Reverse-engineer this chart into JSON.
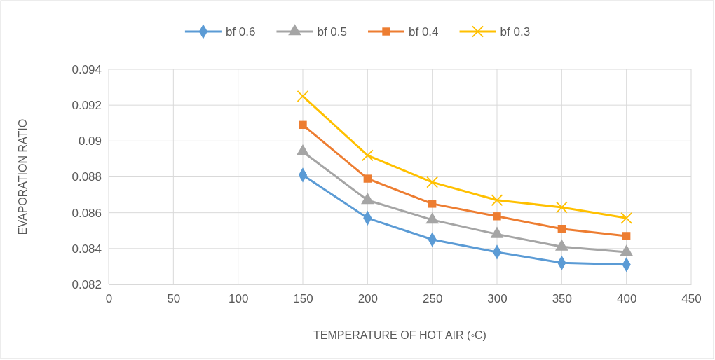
{
  "chart_data": {
    "type": "line",
    "xlabel": "TEMPERATURE OF HOT AIR (◦C)",
    "ylabel": "EVAPORATION RATIO",
    "x": [
      150,
      200,
      250,
      300,
      350,
      400
    ],
    "xlim": [
      0,
      450
    ],
    "xticks": [
      0,
      50,
      100,
      150,
      200,
      250,
      300,
      350,
      400,
      450
    ],
    "ylim": [
      0.082,
      0.094
    ],
    "yticks": [
      0.082,
      0.084,
      0.086,
      0.088,
      0.09,
      0.092,
      0.094
    ],
    "grid": true,
    "legend": "top",
    "series": [
      {
        "name": "bf 0.6",
        "color": "#5b9bd5",
        "marker": "diamond",
        "values": [
          0.0881,
          0.0857,
          0.0845,
          0.0838,
          0.0832,
          0.0831
        ]
      },
      {
        "name": "bf 0.5",
        "color": "#a5a5a5",
        "marker": "triangle",
        "values": [
          0.0894,
          0.0867,
          0.0856,
          0.0848,
          0.0841,
          0.0838
        ]
      },
      {
        "name": "bf 0.4",
        "color": "#ed7d31",
        "marker": "square",
        "values": [
          0.0909,
          0.0879,
          0.0865,
          0.0858,
          0.0851,
          0.0847
        ]
      },
      {
        "name": "bf 0.3",
        "color": "#ffc000",
        "marker": "cross",
        "values": [
          0.0925,
          0.0892,
          0.0877,
          0.0867,
          0.0863,
          0.0857
        ]
      }
    ]
  }
}
